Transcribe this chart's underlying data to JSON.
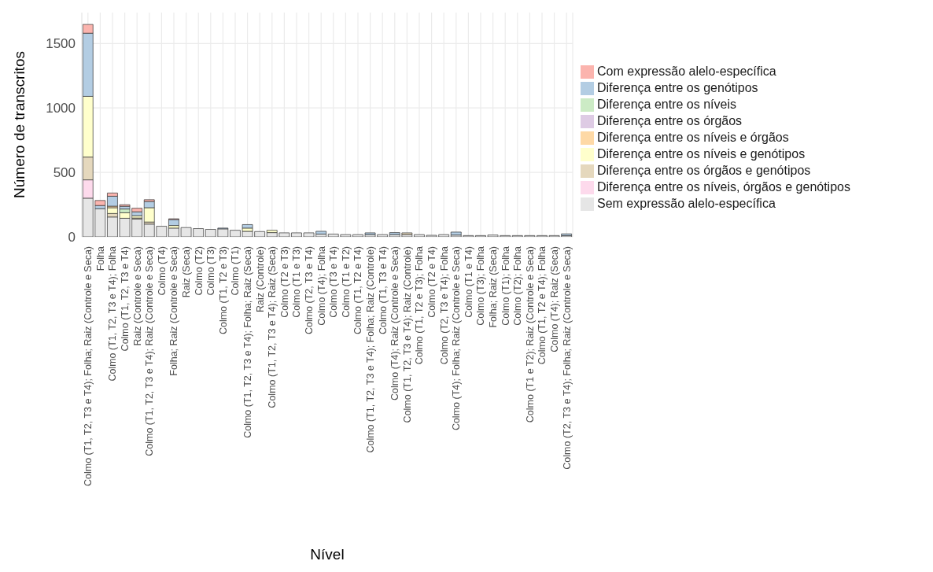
{
  "chart_data": {
    "type": "bar",
    "stacked": true,
    "xlabel": "Nível",
    "ylabel": "Número de transcritos",
    "categories": [
      "Colmo (T1, T2, T3 e T4); Folha; Raiz (Controle e Seca)",
      "Folha",
      "Colmo (T1, T2, T3 e T4); Folha",
      "Colmo (T1, T2, T3 e T4)",
      "Raiz (Controle e Seca)",
      "Colmo (T1, T2, T3 e T4); Raiz (Controle e Seca)",
      "Colmo (T4)",
      "Folha; Raiz (Controle e Seca)",
      "Raiz (Seca)",
      "Colmo (T2)",
      "Colmo (T3)",
      "Colmo (T1, T2 e T3)",
      "Colmo (T1)",
      "Colmo (T1, T2, T3 e T4); Folha; Raiz (Seca)",
      "Raiz (Controle)",
      "Colmo (T1, T2, T3 e T4); Raiz (Seca)",
      "Colmo (T2 e T3)",
      "Colmo (T1 e T3)",
      "Colmo (T2, T3 e T4)",
      "Colmo (T4); Folha",
      "Colmo (T3 e T4)",
      "Colmo (T1 e T2)",
      "Colmo (T1, T2 e T4)",
      "Colmo (T1, T2, T3 e T4); Folha; Raiz (Controle)",
      "Colmo (T1, T3 e T4)",
      "Colmo (T4); Raiz (Controle e Seca)",
      "Colmo (T1, T2, T3 e T4); Raiz (Controle)",
      "Colmo (T1, T2 e T3); Folha",
      "Colmo (T2 e T4)",
      "Colmo (T2, T3 e T4); Folha",
      "Colmo (T4); Folha; Raiz (Controle e Seca)",
      "Colmo (T1 e T4)",
      "Colmo (T3); Folha",
      "Folha; Raiz (Seca)",
      "Colmo (T1); Folha",
      "Colmo (T2); Folha",
      "Colmo (T1 e T2); Raiz (Controle e Seca)",
      "Colmo (T1, T2 e T4); Folha",
      "Colmo (T4); Raiz (Seca)",
      "Colmo (T2, T3 e T4); Folha; Raiz (Controle e Seca)"
    ],
    "series": [
      {
        "name": "Sem expressão alelo-específica",
        "color": "#e6e6e6",
        "values": [
          300,
          218,
          154,
          144,
          138,
          99,
          82,
          68,
          72,
          64,
          58,
          62,
          51,
          43,
          41,
          33,
          31,
          31,
          31,
          21,
          21,
          17,
          17,
          17,
          17,
          17,
          17,
          17,
          12,
          17,
          14,
          10,
          10,
          14,
          10,
          10,
          10,
          10,
          10,
          10
        ]
      },
      {
        "name": "Diferença entre os níveis, órgãos e genótipos",
        "color": "#fddaec",
        "values": [
          142,
          0,
          0,
          0,
          0,
          0,
          0,
          0,
          0,
          0,
          0,
          0,
          0,
          0,
          0,
          0,
          0,
          0,
          0,
          0,
          0,
          0,
          0,
          0,
          0,
          0,
          0,
          0,
          0,
          0,
          0,
          0,
          0,
          0,
          0,
          0,
          0,
          0,
          0,
          0
        ]
      },
      {
        "name": "Diferença entre os órgãos e genótipos",
        "color": "#e5d8bd",
        "values": [
          177,
          0,
          27,
          0,
          8,
          16,
          0,
          0,
          0,
          0,
          0,
          0,
          0,
          0,
          0,
          null,
          0,
          0,
          0,
          0,
          0,
          0,
          0,
          0,
          0,
          0,
          14,
          null,
          0,
          0,
          0,
          0,
          0,
          0,
          0,
          0,
          0,
          0,
          0,
          0
        ]
      },
      {
        "name": "Diferença entre os níveis e genótipos",
        "color": "#ffffcc",
        "values": [
          471,
          0,
          45,
          43,
          18,
          111,
          0,
          20,
          0,
          0,
          0,
          0,
          0,
          25,
          0,
          18,
          0,
          0,
          0,
          0,
          0,
          0,
          0,
          0,
          0,
          0,
          0,
          0,
          0,
          0,
          0,
          0,
          0,
          0,
          0,
          0,
          0,
          0,
          0,
          0
        ]
      },
      {
        "name": "Diferença entre os níveis e órgãos",
        "color": "#fed9a6",
        "values": [
          0,
          0,
          12,
          0,
          0,
          0,
          0,
          0,
          0,
          0,
          0,
          0,
          0,
          0,
          0,
          0,
          0,
          0,
          0,
          0,
          0,
          0,
          0,
          0,
          0,
          0,
          0,
          0,
          0,
          0,
          0,
          0,
          0,
          0,
          0,
          0,
          0,
          0,
          0,
          0
        ]
      },
      {
        "name": "Diferença entre os órgãos",
        "color": "#decbe4",
        "values": [
          0,
          0,
          0,
          0,
          0,
          0,
          0,
          0,
          0,
          0,
          0,
          0,
          0,
          0,
          0,
          0,
          0,
          0,
          0,
          0,
          0,
          0,
          0,
          0,
          0,
          0,
          0,
          0,
          0,
          0,
          0,
          0,
          0,
          0,
          0,
          0,
          0,
          0,
          0,
          0
        ]
      },
      {
        "name": "Diferença entre os níveis",
        "color": "#ccebc5",
        "values": [
          0,
          0,
          0,
          29,
          0,
          0,
          0,
          0,
          0,
          0,
          0,
          0,
          0,
          0,
          0,
          0,
          0,
          0,
          0,
          0,
          0,
          0,
          0,
          0,
          0,
          0,
          0,
          0,
          0,
          0,
          0,
          0,
          0,
          0,
          0,
          0,
          0,
          0,
          0,
          0
        ]
      },
      {
        "name": "Diferença entre os genótipos",
        "color": "#b3cde3",
        "values": [
          490,
          25,
          77,
          21,
          30,
          48,
          0,
          46,
          0,
          0,
          0,
          6,
          0,
          27,
          0,
          0,
          0,
          0,
          0,
          22,
          0,
          0,
          0,
          14,
          0,
          16,
          0,
          0,
          0,
          0,
          23,
          0,
          0,
          0,
          0,
          0,
          0,
          0,
          0,
          13
        ]
      },
      {
        "name": "Com expressão alelo-específica",
        "color": "#fbb4ae",
        "values": [
          68,
          39,
          25,
          12,
          28,
          14,
          0,
          6,
          0,
          0,
          0,
          0,
          0,
          null,
          0,
          0,
          0,
          0,
          0,
          0,
          0,
          0,
          0,
          0,
          0,
          0,
          0,
          0,
          0,
          0,
          0,
          0,
          0,
          0,
          0,
          0,
          0,
          0,
          0,
          0
        ]
      }
    ],
    "ylim": [
      0,
      1740
    ],
    "yticks": [
      0,
      500,
      1000,
      1500
    ],
    "grid": true,
    "legend": "right"
  }
}
